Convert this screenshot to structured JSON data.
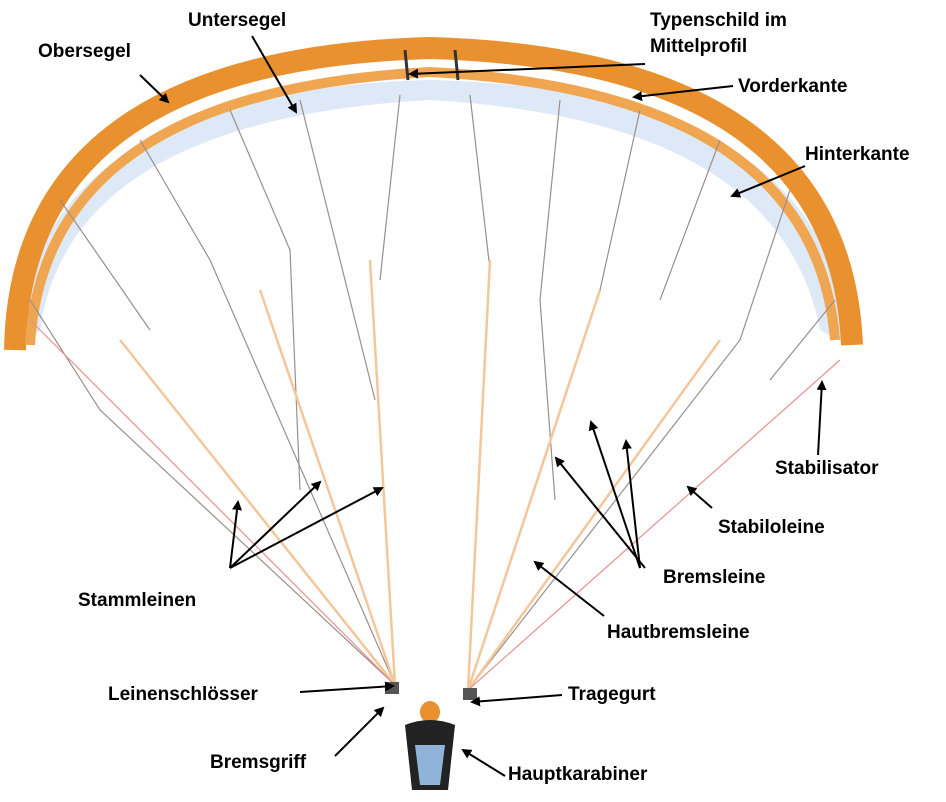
{
  "labels": {
    "obersegel": "Obersegel",
    "untersegel": "Untersegel",
    "typenschild": [
      "Typenschild im",
      "Mittelprofil"
    ],
    "vorderkante": "Vorderkante",
    "hinterkante": "Hinterkante",
    "stabilisator": "Stabilisator",
    "stabiloleine": "Stabiloleine",
    "bremsleine": "Bremsleine",
    "hautbremsleine": "Hautbremsleine",
    "stammleinen": "Stammleinen",
    "leinenschloesser": "Leinenschlösser",
    "tragegurt": "Tragegurt",
    "bremsgriff": "Bremsgriff",
    "hauptkarabiner": "Hauptkarabiner"
  }
}
